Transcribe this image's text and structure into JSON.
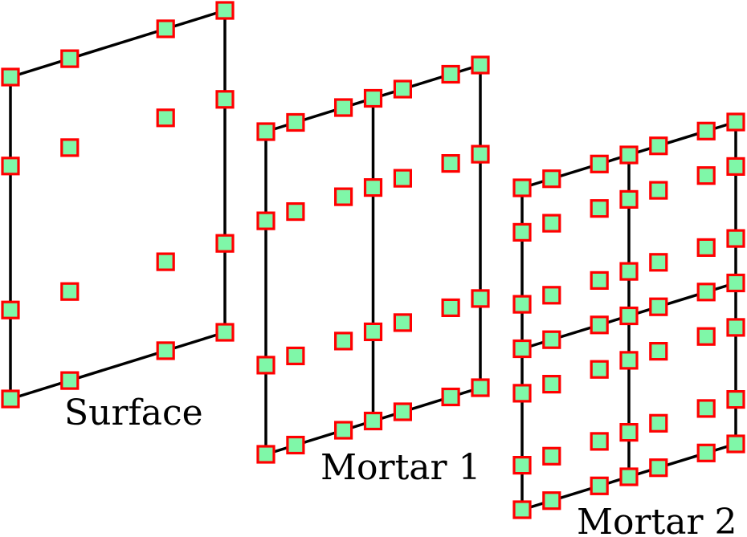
{
  "labels": {
    "surface": "Surface",
    "mortar1": "Mortar 1",
    "mortar2": "Mortar 2"
  },
  "colors": {
    "node_fill": "#7ff7a8",
    "node_stroke": "#ff0000",
    "edge": "#000000"
  },
  "elements": [
    {
      "name": "surface",
      "subdivisions": [
        1,
        1
      ],
      "nodes_per_edge": 4
    },
    {
      "name": "mortar1",
      "subdivisions": [
        2,
        1
      ],
      "nodes_per_edge": 4
    },
    {
      "name": "mortar2",
      "subdivisions": [
        2,
        2
      ],
      "nodes_per_edge": 4
    }
  ]
}
